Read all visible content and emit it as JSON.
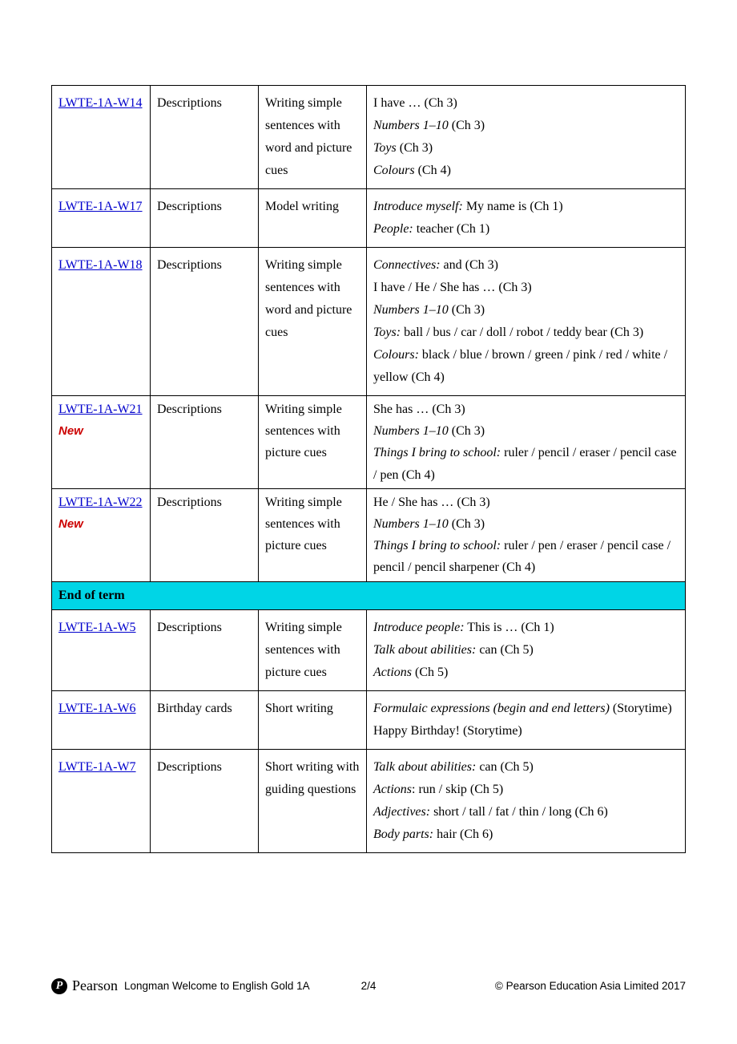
{
  "colors": {
    "link": "#0000cc",
    "new": "#cc0000",
    "section_bg": "#00d5e6",
    "border": "#000000",
    "text": "#000000",
    "page_bg": "#ffffff"
  },
  "table": {
    "rows": [
      {
        "code": "LWTE-1A-W14",
        "new": false,
        "col2": "Descriptions",
        "col3": "Writing simple sentences with word and picture cues",
        "col4": "I have … (Ch 3)<br><span class=\"italic\">Numbers 1–10</span> (Ch 3)<br><span class=\"italic\">Toys</span> (Ch 3)<br><span class=\"italic\">Colours</span> (Ch 4)"
      },
      {
        "code": "LWTE-1A-W17",
        "new": false,
        "col2": "Descriptions",
        "col3": "Model writing",
        "col4": "<span class=\"italic\">Introduce myself:</span> My name is (Ch 1)<br><span class=\"italic\">People:</span> teacher (Ch 1)"
      },
      {
        "code": "LWTE-1A-W18",
        "new": false,
        "col2": "Descriptions",
        "col3": "Writing simple sentences with word and picture cues",
        "col4": "<span class=\"italic\">Connectives:</span> and (Ch 3)<br>I have / He / She has … (Ch 3)<br><span class=\"italic\">Numbers 1–10</span> (Ch 3)<br><span class=\"italic\">Toys:</span> ball / bus / car / doll / robot / teddy bear (Ch 3)<br><span class=\"italic\">Colours:</span> black / blue / brown / green / pink / red / white / yellow (Ch 4)"
      },
      {
        "code": "LWTE-1A-W21",
        "new": true,
        "tight": true,
        "col2": "Descriptions",
        "col3": "Writing simple sentences with picture cues",
        "col4": "She has … (Ch 3)<br><span class=\"italic\">Numbers 1–10</span> (Ch 3)<br><span class=\"italic\">Things I bring to school:</span> ruler / pencil / eraser / pencil case / pen (Ch 4)"
      },
      {
        "code": "LWTE-1A-W22",
        "new": true,
        "tight": true,
        "col2": "Descriptions",
        "col3": "Writing simple sentences with picture cues",
        "col4": "He / She has … (Ch 3)<br><span class=\"italic\">Numbers 1–10</span> (Ch 3)<br><span class=\"italic\">Things I bring to school:</span> ruler / pen / eraser / pencil case / pencil / pencil sharpener (Ch 4)"
      }
    ],
    "section_label": "End of term",
    "rows2": [
      {
        "code": "LWTE-1A-W5",
        "new": false,
        "col2": "Descriptions",
        "col3": "Writing simple sentences with picture cues",
        "col4": "<span class=\"italic\">Introduce people:</span> This is … (Ch 1)<br><span class=\"italic\">Talk about abilities:</span> can (Ch 5)<br><span class=\"italic\">Actions</span> (Ch 5)"
      },
      {
        "code": "LWTE-1A-W6",
        "new": false,
        "col2": "Birthday cards",
        "col3": "Short writing",
        "col4": "<span class=\"italic\">Formulaic expressions (begin and end letters)</span> (Storytime)<br>Happy Birthday! (Storytime)"
      },
      {
        "code": "LWTE-1A-W7",
        "new": false,
        "col2": "Descriptions",
        "col3": "Short writing with guiding questions",
        "col4": "<span class=\"italic\">Talk about abilities:</span> can (Ch 5)<br><span class=\"italic\">Actions</span>: run / skip (Ch 5)<br><span class=\"italic\">Adjectives:</span> short / tall / fat / thin / long (Ch 6)<br><span class=\"italic\">Body parts:</span> hair (Ch 6)"
      }
    ]
  },
  "new_label": "New",
  "footer": {
    "brand": "Pearson",
    "title": "Longman Welcome to English Gold 1A",
    "page": "2/4",
    "copyright": "© Pearson Education Asia Limited 2017"
  }
}
